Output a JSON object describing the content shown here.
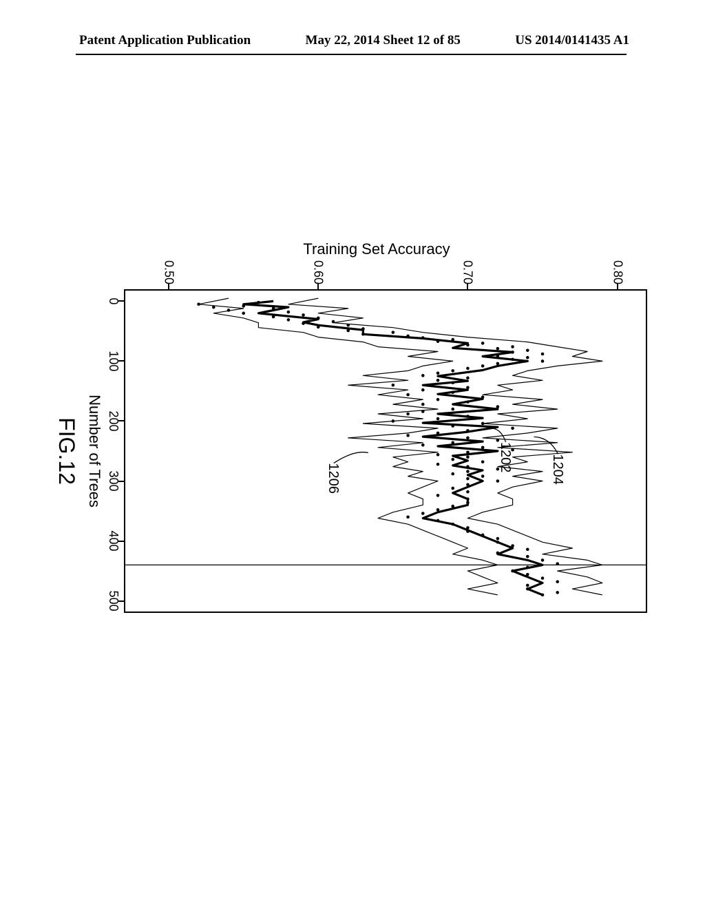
{
  "header": {
    "left": "Patent Application Publication",
    "center": "May 22, 2014  Sheet 12 of 85",
    "right": "US 2014/0141435 A1"
  },
  "chart": {
    "type": "line",
    "figure_label": "FIG.12",
    "xlabel": "Number of Trees",
    "ylabel": "Training Set Accuracy",
    "xlim": [
      -20,
      520
    ],
    "ylim": [
      0.47,
      0.82
    ],
    "xticks": [
      0,
      100,
      200,
      300,
      400,
      500
    ],
    "yticks": [
      0.5,
      0.6,
      0.7,
      0.8
    ],
    "background_color": "#ffffff",
    "border_color": "#000000",
    "vertical_line_x": 440,
    "callouts": [
      {
        "label": "1204",
        "x_chart": 255,
        "y_chart": 0.765
      },
      {
        "label": "1202",
        "x_chart": 235,
        "y_chart": 0.73
      },
      {
        "label": "1206",
        "x_chart": 270,
        "y_chart": 0.615
      }
    ],
    "series_thick": {
      "stroke": "#000000",
      "stroke_width": 3.2,
      "points": [
        [
          0,
          0.57
        ],
        [
          5,
          0.55
        ],
        [
          10,
          0.58
        ],
        [
          15,
          0.57
        ],
        [
          20,
          0.56
        ],
        [
          25,
          0.58
        ],
        [
          30,
          0.6
        ],
        [
          35,
          0.59
        ],
        [
          40,
          0.6
        ],
        [
          48,
          0.63
        ],
        [
          55,
          0.63
        ],
        [
          62,
          0.67
        ],
        [
          70,
          0.7
        ],
        [
          78,
          0.69
        ],
        [
          85,
          0.73
        ],
        [
          92,
          0.71
        ],
        [
          100,
          0.74
        ],
        [
          108,
          0.72
        ],
        [
          115,
          0.71
        ],
        [
          125,
          0.68
        ],
        [
          133,
          0.7
        ],
        [
          140,
          0.67
        ],
        [
          148,
          0.7
        ],
        [
          155,
          0.68
        ],
        [
          163,
          0.71
        ],
        [
          172,
          0.69
        ],
        [
          180,
          0.72
        ],
        [
          188,
          0.68
        ],
        [
          195,
          0.71
        ],
        [
          203,
          0.67
        ],
        [
          210,
          0.72
        ],
        [
          218,
          0.7
        ],
        [
          226,
          0.67
        ],
        [
          234,
          0.71
        ],
        [
          242,
          0.68
        ],
        [
          250,
          0.72
        ],
        [
          258,
          0.69
        ],
        [
          266,
          0.7
        ],
        [
          274,
          0.69
        ],
        [
          282,
          0.71
        ],
        [
          290,
          0.7
        ],
        [
          300,
          0.71
        ],
        [
          310,
          0.7
        ],
        [
          320,
          0.69
        ],
        [
          330,
          0.7
        ],
        [
          340,
          0.7
        ],
        [
          352,
          0.68
        ],
        [
          362,
          0.67
        ],
        [
          372,
          0.69
        ],
        [
          382,
          0.7
        ],
        [
          392,
          0.71
        ],
        [
          402,
          0.72
        ],
        [
          412,
          0.73
        ],
        [
          422,
          0.72
        ],
        [
          432,
          0.74
        ],
        [
          440,
          0.75
        ],
        [
          450,
          0.73
        ],
        [
          460,
          0.74
        ],
        [
          470,
          0.75
        ],
        [
          480,
          0.74
        ],
        [
          490,
          0.75
        ]
      ]
    },
    "series_thin_upper": {
      "stroke": "#000000",
      "stroke_width": 1.2,
      "points": [
        [
          -5,
          0.6
        ],
        [
          5,
          0.58
        ],
        [
          12,
          0.62
        ],
        [
          20,
          0.6
        ],
        [
          28,
          0.63
        ],
        [
          36,
          0.61
        ],
        [
          44,
          0.65
        ],
        [
          52,
          0.67
        ],
        [
          60,
          0.7
        ],
        [
          68,
          0.74
        ],
        [
          76,
          0.76
        ],
        [
          84,
          0.78
        ],
        [
          92,
          0.77
        ],
        [
          100,
          0.79
        ],
        [
          108,
          0.76
        ],
        [
          116,
          0.74
        ],
        [
          124,
          0.73
        ],
        [
          132,
          0.75
        ],
        [
          140,
          0.72
        ],
        [
          148,
          0.73
        ],
        [
          156,
          0.71
        ],
        [
          164,
          0.75
        ],
        [
          172,
          0.73
        ],
        [
          180,
          0.76
        ],
        [
          188,
          0.72
        ],
        [
          196,
          0.74
        ],
        [
          204,
          0.71
        ],
        [
          212,
          0.76
        ],
        [
          220,
          0.74
        ],
        [
          228,
          0.71
        ],
        [
          236,
          0.76
        ],
        [
          244,
          0.72
        ],
        [
          252,
          0.77
        ],
        [
          260,
          0.73
        ],
        [
          268,
          0.74
        ],
        [
          276,
          0.72
        ],
        [
          284,
          0.75
        ],
        [
          292,
          0.73
        ],
        [
          300,
          0.75
        ],
        [
          310,
          0.73
        ],
        [
          320,
          0.72
        ],
        [
          330,
          0.73
        ],
        [
          340,
          0.73
        ],
        [
          352,
          0.71
        ],
        [
          362,
          0.7
        ],
        [
          372,
          0.72
        ],
        [
          382,
          0.73
        ],
        [
          392,
          0.74
        ],
        [
          402,
          0.75
        ],
        [
          412,
          0.77
        ],
        [
          422,
          0.75
        ],
        [
          432,
          0.78
        ],
        [
          440,
          0.79
        ],
        [
          450,
          0.76
        ],
        [
          460,
          0.78
        ],
        [
          470,
          0.79
        ],
        [
          480,
          0.77
        ],
        [
          490,
          0.79
        ]
      ]
    },
    "series_thin_lower": {
      "stroke": "#000000",
      "stroke_width": 1.2,
      "points": [
        [
          -5,
          0.54
        ],
        [
          5,
          0.52
        ],
        [
          12,
          0.55
        ],
        [
          20,
          0.53
        ],
        [
          28,
          0.55
        ],
        [
          36,
          0.56
        ],
        [
          44,
          0.56
        ],
        [
          52,
          0.59
        ],
        [
          60,
          0.6
        ],
        [
          68,
          0.63
        ],
        [
          76,
          0.64
        ],
        [
          84,
          0.68
        ],
        [
          92,
          0.66
        ],
        [
          100,
          0.69
        ],
        [
          108,
          0.67
        ],
        [
          116,
          0.66
        ],
        [
          124,
          0.63
        ],
        [
          132,
          0.66
        ],
        [
          140,
          0.62
        ],
        [
          148,
          0.66
        ],
        [
          156,
          0.64
        ],
        [
          164,
          0.67
        ],
        [
          172,
          0.65
        ],
        [
          180,
          0.68
        ],
        [
          188,
          0.64
        ],
        [
          196,
          0.67
        ],
        [
          204,
          0.63
        ],
        [
          212,
          0.68
        ],
        [
          220,
          0.66
        ],
        [
          228,
          0.62
        ],
        [
          236,
          0.67
        ],
        [
          244,
          0.64
        ],
        [
          252,
          0.68
        ],
        [
          260,
          0.65
        ],
        [
          268,
          0.66
        ],
        [
          276,
          0.65
        ],
        [
          284,
          0.67
        ],
        [
          292,
          0.66
        ],
        [
          300,
          0.68
        ],
        [
          310,
          0.67
        ],
        [
          320,
          0.66
        ],
        [
          330,
          0.67
        ],
        [
          340,
          0.67
        ],
        [
          352,
          0.65
        ],
        [
          362,
          0.64
        ],
        [
          372,
          0.66
        ],
        [
          382,
          0.67
        ],
        [
          392,
          0.68
        ],
        [
          402,
          0.69
        ],
        [
          412,
          0.7
        ],
        [
          422,
          0.69
        ],
        [
          432,
          0.71
        ],
        [
          440,
          0.72
        ],
        [
          450,
          0.7
        ],
        [
          460,
          0.71
        ],
        [
          470,
          0.72
        ],
        [
          480,
          0.7
        ],
        [
          490,
          0.72
        ]
      ]
    },
    "scatter": {
      "color": "#000000",
      "radius": 2.3,
      "points": [
        [
          2,
          0.56
        ],
        [
          5,
          0.52
        ],
        [
          8,
          0.55
        ],
        [
          10,
          0.53
        ],
        [
          12,
          0.57
        ],
        [
          15,
          0.54
        ],
        [
          18,
          0.58
        ],
        [
          20,
          0.55
        ],
        [
          23,
          0.59
        ],
        [
          26,
          0.57
        ],
        [
          28,
          0.6
        ],
        [
          31,
          0.58
        ],
        [
          34,
          0.61
        ],
        [
          37,
          0.59
        ],
        [
          40,
          0.62
        ],
        [
          43,
          0.6
        ],
        [
          46,
          0.63
        ],
        [
          49,
          0.62
        ],
        [
          52,
          0.65
        ],
        [
          55,
          0.63
        ],
        [
          58,
          0.66
        ],
        [
          61,
          0.67
        ],
        [
          64,
          0.69
        ],
        [
          67,
          0.68
        ],
        [
          70,
          0.71
        ],
        [
          73,
          0.7
        ],
        [
          76,
          0.73
        ],
        [
          79,
          0.72
        ],
        [
          82,
          0.74
        ],
        [
          85,
          0.73
        ],
        [
          88,
          0.75
        ],
        [
          91,
          0.72
        ],
        [
          94,
          0.74
        ],
        [
          97,
          0.73
        ],
        [
          100,
          0.75
        ],
        [
          104,
          0.72
        ],
        [
          108,
          0.71
        ],
        [
          112,
          0.7
        ],
        [
          116,
          0.69
        ],
        [
          120,
          0.68
        ],
        [
          124,
          0.67
        ],
        [
          128,
          0.7
        ],
        [
          132,
          0.68
        ],
        [
          136,
          0.69
        ],
        [
          140,
          0.65
        ],
        [
          144,
          0.7
        ],
        [
          148,
          0.67
        ],
        [
          152,
          0.69
        ],
        [
          156,
          0.66
        ],
        [
          160,
          0.71
        ],
        [
          164,
          0.68
        ],
        [
          168,
          0.7
        ],
        [
          172,
          0.67
        ],
        [
          176,
          0.72
        ],
        [
          180,
          0.69
        ],
        [
          184,
          0.67
        ],
        [
          188,
          0.66
        ],
        [
          192,
          0.7
        ],
        [
          196,
          0.68
        ],
        [
          200,
          0.65
        ],
        [
          204,
          0.71
        ],
        [
          208,
          0.69
        ],
        [
          212,
          0.73
        ],
        [
          216,
          0.7
        ],
        [
          220,
          0.68
        ],
        [
          224,
          0.66
        ],
        [
          228,
          0.7
        ],
        [
          232,
          0.72
        ],
        [
          236,
          0.69
        ],
        [
          240,
          0.67
        ],
        [
          244,
          0.71
        ],
        [
          248,
          0.73
        ],
        [
          252,
          0.7
        ],
        [
          256,
          0.68
        ],
        [
          260,
          0.7
        ],
        [
          264,
          0.69
        ],
        [
          268,
          0.71
        ],
        [
          272,
          0.68
        ],
        [
          276,
          0.7
        ],
        [
          280,
          0.72
        ],
        [
          284,
          0.7
        ],
        [
          288,
          0.69
        ],
        [
          292,
          0.71
        ],
        [
          296,
          0.7
        ],
        [
          300,
          0.72
        ],
        [
          306,
          0.7
        ],
        [
          312,
          0.69
        ],
        [
          318,
          0.7
        ],
        [
          324,
          0.68
        ],
        [
          330,
          0.7
        ],
        [
          336,
          0.7
        ],
        [
          342,
          0.69
        ],
        [
          348,
          0.68
        ],
        [
          354,
          0.67
        ],
        [
          360,
          0.66
        ],
        [
          366,
          0.68
        ],
        [
          372,
          0.69
        ],
        [
          378,
          0.7
        ],
        [
          384,
          0.7
        ],
        [
          390,
          0.71
        ],
        [
          396,
          0.72
        ],
        [
          402,
          0.72
        ],
        [
          408,
          0.73
        ],
        [
          414,
          0.74
        ],
        [
          420,
          0.72
        ],
        [
          426,
          0.74
        ],
        [
          432,
          0.75
        ],
        [
          438,
          0.76
        ],
        [
          444,
          0.74
        ],
        [
          450,
          0.73
        ],
        [
          456,
          0.74
        ],
        [
          462,
          0.75
        ],
        [
          468,
          0.76
        ],
        [
          474,
          0.74
        ],
        [
          480,
          0.74
        ],
        [
          486,
          0.76
        ],
        [
          490,
          0.75
        ]
      ]
    }
  }
}
